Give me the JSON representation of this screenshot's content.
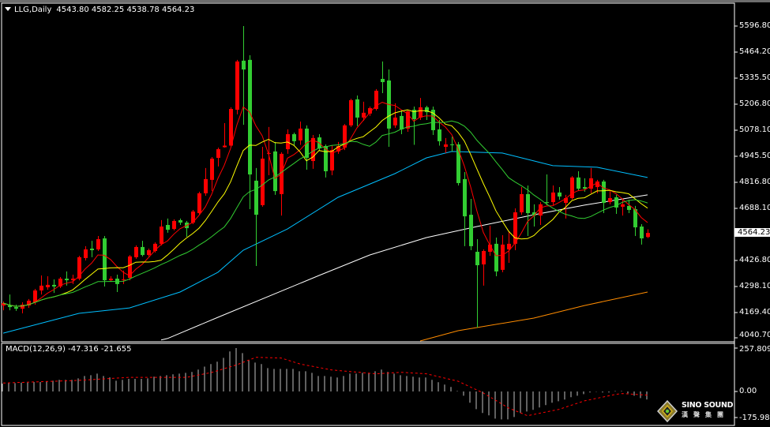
{
  "header": {
    "symbol": "LLG,Daily",
    "ohlc": "4543.80 4582.25 4538.78 4564.23"
  },
  "macd_label": "MACD(12,26,9) -47.316 -21.655",
  "price_axis": {
    "ticks": [
      "5596.80",
      "5464.20",
      "5335.50",
      "5206.80",
      "5078.10",
      "4945.50",
      "4816.80",
      "4688.10",
      "4426.80",
      "4298.10",
      "4169.40",
      "4040.70"
    ],
    "current_price": "4564.23"
  },
  "macd_axis": {
    "ticks": [
      "257.809",
      "0.00",
      "-175.983"
    ]
  },
  "logo": {
    "name": "SINO SOUND",
    "chinese": "漢聲集團"
  },
  "colors": {
    "background": "#000000",
    "up_candle": "#ff0000",
    "down_candle": "#32cd32",
    "ma_fast": "#ff0000",
    "ma_mid": "#ffff00",
    "ma_slow": "#32cd32",
    "ma_60": "#00bfff",
    "ma_120": "#ffffff",
    "ma_250": "#ff8c00",
    "macd_hist": "#c0c0c0",
    "macd_signal": "#ff0000"
  },
  "chart_data": {
    "type": "candlestick",
    "ylim": [
      4040.7,
      5596.8
    ],
    "candles_ohlc": [
      [
        4202,
        4222,
        4178,
        4214
      ],
      [
        4202,
        4257,
        4178,
        4194
      ],
      [
        4194,
        4206,
        4175,
        4186
      ],
      [
        4186,
        4218,
        4163,
        4206
      ],
      [
        4202,
        4234,
        4190,
        4226
      ],
      [
        4218,
        4285,
        4206,
        4277
      ],
      [
        4277,
        4352,
        4257,
        4301
      ],
      [
        4293,
        4348,
        4281,
        4305
      ],
      [
        4305,
        4332,
        4265,
        4297
      ],
      [
        4297,
        4344,
        4289,
        4336
      ],
      [
        4336,
        4372,
        4301,
        4328
      ],
      [
        4328,
        4356,
        4309,
        4336
      ],
      [
        4336,
        4450,
        4328,
        4443
      ],
      [
        4439,
        4498,
        4427,
        4482
      ],
      [
        4486,
        4525,
        4443,
        4478
      ],
      [
        4482,
        4549,
        4474,
        4533
      ],
      [
        4537,
        4549,
        4297,
        4328
      ],
      [
        4328,
        4348,
        4320,
        4336
      ],
      [
        4336,
        4356,
        4269,
        4309
      ],
      [
        4328,
        4376,
        4309,
        4332
      ],
      [
        4340,
        4454,
        4328,
        4447
      ],
      [
        4443,
        4502,
        4435,
        4494
      ],
      [
        4494,
        4525,
        4447,
        4454
      ],
      [
        4454,
        4486,
        4447,
        4478
      ],
      [
        4474,
        4517,
        4466,
        4510
      ],
      [
        4510,
        4628,
        4502,
        4596
      ],
      [
        4604,
        4636,
        4565,
        4580
      ],
      [
        4584,
        4632,
        4577,
        4624
      ],
      [
        4628,
        4636,
        4604,
        4616
      ],
      [
        4616,
        4624,
        4545,
        4588
      ],
      [
        4616,
        4679,
        4608,
        4671
      ],
      [
        4663,
        4770,
        4655,
        4762
      ],
      [
        4762,
        4888,
        4750,
        4833
      ],
      [
        4829,
        4943,
        4773,
        4935
      ],
      [
        4939,
        4990,
        4896,
        4982
      ],
      [
        4992,
        5112,
        4990,
        5000
      ],
      [
        5000,
        5191,
        4992,
        5183
      ],
      [
        5179,
        5428,
        5156,
        5420
      ],
      [
        5424,
        5597,
        5104,
        5380
      ],
      [
        5428,
        5451,
        4683,
        4856
      ],
      [
        4825,
        4888,
        4399,
        4655
      ],
      [
        4703,
        4994,
        4695,
        4935
      ],
      [
        4959,
        5093,
        4852,
        4963
      ],
      [
        4971,
        5018,
        4754,
        4773
      ],
      [
        4758,
        4967,
        4651,
        4959
      ],
      [
        4982,
        5081,
        4959,
        5057
      ],
      [
        5057,
        5065,
        5000,
        5022
      ],
      [
        5026,
        5120,
        5004,
        5085
      ],
      [
        5085,
        5101,
        4880,
        4939
      ],
      [
        4923,
        5053,
        4884,
        5038
      ],
      [
        5041,
        5057,
        4974,
        4986
      ],
      [
        4998,
        5006,
        4841,
        4872
      ],
      [
        4876,
        5000,
        4852,
        4978
      ],
      [
        4971,
        5018,
        4959,
        4998
      ],
      [
        4990,
        5108,
        4978,
        5101
      ],
      [
        5101,
        5234,
        5093,
        5227
      ],
      [
        5231,
        5250,
        5097,
        5140
      ],
      [
        5140,
        5219,
        5124,
        5164
      ],
      [
        5160,
        5195,
        5148,
        5187
      ],
      [
        5183,
        5282,
        5175,
        5274
      ],
      [
        5333,
        5420,
        5262,
        5317
      ],
      [
        5325,
        5380,
        4994,
        5085
      ],
      [
        5101,
        5211,
        5089,
        5140
      ],
      [
        5148,
        5175,
        5057,
        5081
      ],
      [
        5085,
        5179,
        5069,
        5171
      ],
      [
        5179,
        5195,
        5004,
        5132
      ],
      [
        5140,
        5238,
        5128,
        5191
      ],
      [
        5191,
        5199,
        5128,
        5167
      ],
      [
        5179,
        5195,
        5053,
        5077
      ],
      [
        5081,
        5128,
        5000,
        5022
      ],
      [
        4994,
        5038,
        4963,
        5006
      ],
      [
        5006,
        5045,
        4971,
        5002
      ],
      [
        5006,
        5018,
        4801,
        4813
      ],
      [
        4833,
        4868,
        4498,
        4647
      ],
      [
        4655,
        4734,
        4478,
        4498
      ],
      [
        4470,
        4533,
        4092,
        4403
      ],
      [
        4407,
        4482,
        4301,
        4474
      ],
      [
        4470,
        4600,
        4450,
        4506
      ],
      [
        4510,
        4541,
        4348,
        4372
      ],
      [
        4380,
        4553,
        4368,
        4506
      ],
      [
        4482,
        4573,
        4415,
        4510
      ],
      [
        4510,
        4687,
        4478,
        4667
      ],
      [
        4667,
        4793,
        4655,
        4758
      ],
      [
        4758,
        4801,
        4549,
        4663
      ],
      [
        4667,
        4707,
        4596,
        4651
      ],
      [
        4651,
        4718,
        4604,
        4707
      ],
      [
        4718,
        4856,
        4703,
        4714
      ],
      [
        4718,
        4801,
        4703,
        4766
      ],
      [
        4766,
        4793,
        4730,
        4746
      ],
      [
        4714,
        4754,
        4636,
        4738
      ],
      [
        4738,
        4848,
        4730,
        4841
      ],
      [
        4841,
        4872,
        4777,
        4785
      ],
      [
        4793,
        4837,
        4770,
        4785
      ],
      [
        4785,
        4888,
        4762,
        4837
      ],
      [
        4793,
        4829,
        4762,
        4821
      ],
      [
        4821,
        4829,
        4663,
        4714
      ],
      [
        4718,
        4773,
        4707,
        4738
      ],
      [
        4742,
        4754,
        4659,
        4691
      ],
      [
        4695,
        4730,
        4651,
        4707
      ],
      [
        4699,
        4730,
        4663,
        4679
      ],
      [
        4683,
        4699,
        4549,
        4592
      ],
      [
        4596,
        4608,
        4506,
        4537
      ],
      [
        4543.8,
        4582.25,
        4538.78,
        4564.23
      ]
    ],
    "moving_averages_computed": [
      5,
      10,
      20
    ],
    "ma_60": [
      [
        1,
        4064
      ],
      [
        13,
        4163
      ],
      [
        21,
        4190
      ],
      [
        29,
        4269
      ],
      [
        35,
        4368
      ],
      [
        39,
        4478
      ],
      [
        46,
        4584
      ],
      [
        54,
        4742
      ],
      [
        63,
        4860
      ],
      [
        68,
        4939
      ],
      [
        72,
        4971
      ],
      [
        80,
        4963
      ],
      [
        88,
        4900
      ],
      [
        95,
        4892
      ],
      [
        103,
        4841
      ]
    ],
    "ma_120": [
      [
        26,
        4030
      ],
      [
        27,
        4037
      ],
      [
        35,
        4143
      ],
      [
        51,
        4352
      ],
      [
        59,
        4454
      ],
      [
        68,
        4541
      ],
      [
        76,
        4596
      ],
      [
        85,
        4655
      ],
      [
        93,
        4703
      ],
      [
        103,
        4754
      ]
    ],
    "ma_250": [
      [
        67,
        4025
      ],
      [
        73,
        4076
      ],
      [
        85,
        4139
      ],
      [
        93,
        4202
      ],
      [
        103,
        4269
      ]
    ],
    "macd": {
      "ylim": [
        -175.983,
        257.809
      ],
      "histogram": [
        47,
        50,
        50,
        53,
        53,
        56,
        56,
        61,
        64,
        69,
        69,
        69,
        78,
        92,
        97,
        106,
        92,
        84,
        64,
        69,
        75,
        75,
        75,
        78,
        88,
        92,
        97,
        102,
        106,
        111,
        116,
        130,
        148,
        163,
        177,
        200,
        238,
        258,
        228,
        186,
        172,
        163,
        139,
        134,
        134,
        134,
        134,
        120,
        120,
        111,
        92,
        92,
        88,
        83,
        92,
        106,
        106,
        111,
        111,
        120,
        130,
        116,
        106,
        97,
        92,
        88,
        83,
        83,
        69,
        55,
        41,
        27,
        3,
        -25,
        -67,
        -105,
        -128,
        -142,
        -161,
        -166,
        -166,
        -152,
        -128,
        -119,
        -109,
        -95,
        -81,
        -67,
        -58,
        -48,
        -34,
        -25,
        -16,
        -6,
        -2,
        -6,
        -6,
        3,
        3,
        -11,
        -25,
        -39,
        -47.316
      ],
      "signal": [
        [
          1,
          50
        ],
        [
          13,
          66
        ],
        [
          21,
          84
        ],
        [
          30,
          84
        ],
        [
          34,
          113
        ],
        [
          38,
          159
        ],
        [
          41,
          203
        ],
        [
          45,
          199
        ],
        [
          48,
          163
        ],
        [
          53,
          128
        ],
        [
          60,
          105
        ],
        [
          64,
          114
        ],
        [
          68,
          105
        ],
        [
          73,
          61
        ],
        [
          77,
          -9
        ],
        [
          81,
          -98
        ],
        [
          84,
          -144
        ],
        [
          89,
          -106
        ],
        [
          93,
          -56
        ],
        [
          98,
          -17
        ],
        [
          99,
          -12
        ],
        [
          103,
          -21.655
        ]
      ]
    }
  }
}
